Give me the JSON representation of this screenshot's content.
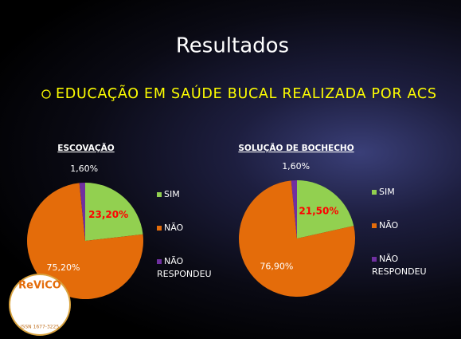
{
  "slide": {
    "title": "Resultados",
    "bullet": "EDUCAÇÃO EM SAÚDE BUCAL REALIZADA POR ACS"
  },
  "logo": {
    "name": "ReViCO",
    "issn": "ISSN 1677-3225"
  },
  "chart_data": [
    {
      "type": "pie",
      "title": "ESCOVAÇÃO",
      "categories": [
        "SIM",
        "NÃO",
        "NÃO RESPONDEU"
      ],
      "values": [
        23.2,
        75.2,
        1.6
      ],
      "value_labels": [
        "23,20%",
        "75,20%",
        "1,60%"
      ],
      "colors": [
        "#92d050",
        "#e46c0a",
        "#7030a0"
      ]
    },
    {
      "type": "pie",
      "title": "SOLUÇÃO DE BOCHECHO",
      "categories": [
        "SIM",
        "NÃO",
        "NÃO RESPONDEU"
      ],
      "values": [
        21.5,
        76.9,
        1.6
      ],
      "value_labels": [
        "21,50%",
        "76,90%",
        "1,60%"
      ],
      "colors": [
        "#92d050",
        "#e46c0a",
        "#7030a0"
      ]
    }
  ]
}
